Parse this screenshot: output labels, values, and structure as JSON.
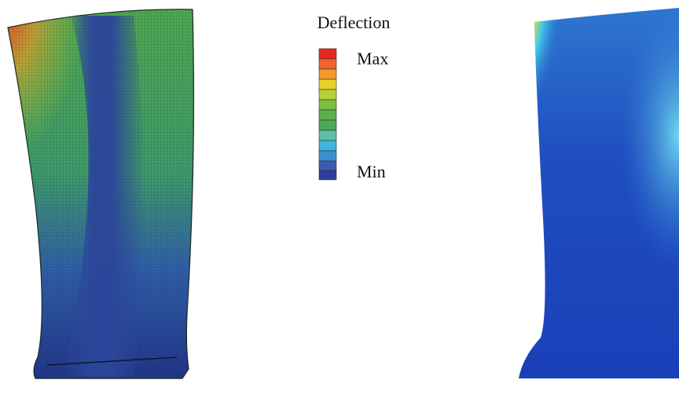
{
  "legend": {
    "title": "Deflection",
    "max_label": "Max",
    "min_label": "Min"
  }
}
